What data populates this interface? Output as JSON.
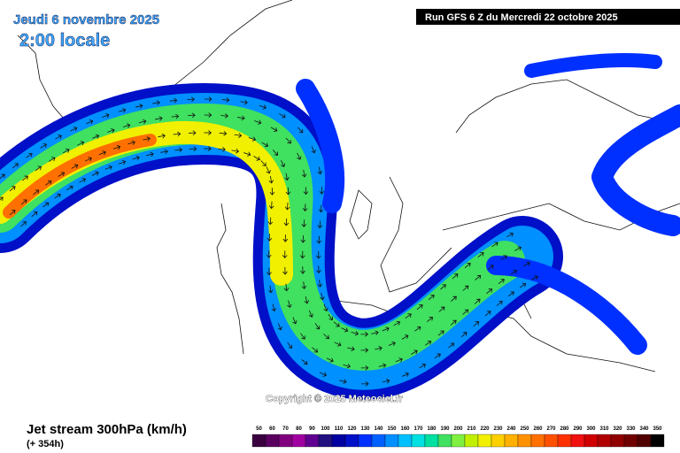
{
  "header": {
    "date": "Jeudi 6 novembre 2025",
    "time": "2:00 locale",
    "run": "Run GFS 6 Z du Mercredi 22 octobre 2025"
  },
  "copyright": "Copyright © 2025 Meteociel.fr",
  "footer": {
    "title": "Jet stream 300hPa (km/h)",
    "lead": "(+ 354h)"
  },
  "legend": {
    "values": [
      50,
      60,
      70,
      80,
      90,
      100,
      110,
      120,
      130,
      140,
      150,
      160,
      170,
      180,
      190,
      200,
      210,
      220,
      230,
      240,
      250,
      260,
      270,
      280,
      290,
      300,
      310,
      320,
      330,
      340,
      350
    ],
    "colors": [
      "#3a0040",
      "#5a0060",
      "#80007f",
      "#a000a0",
      "#600090",
      "#201080",
      "#0000a0",
      "#0010c8",
      "#0030ff",
      "#0060ff",
      "#0090ff",
      "#00c0ff",
      "#00e0e0",
      "#00e0a0",
      "#40e060",
      "#80f040",
      "#c0f000",
      "#f0f000",
      "#ffd000",
      "#ffb000",
      "#ff9000",
      "#ff7000",
      "#ff5000",
      "#ff3000",
      "#f01010",
      "#d00000",
      "#b00000",
      "#900000",
      "#700000",
      "#500000",
      "#000000"
    ]
  }
}
